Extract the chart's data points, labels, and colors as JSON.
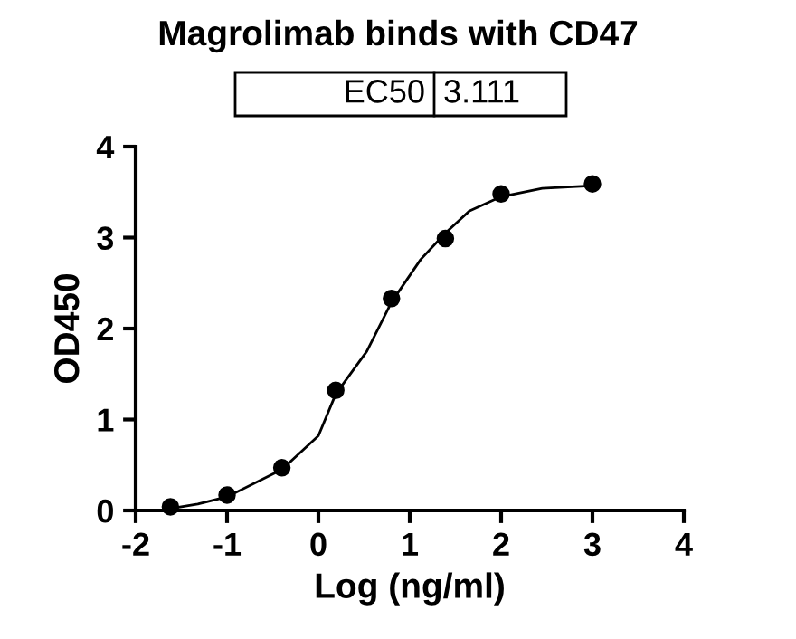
{
  "chart_data": {
    "type": "scatter",
    "title": "Magrolimab binds with CD47",
    "xlabel": "Log (ng/ml)",
    "ylabel": "OD450",
    "annotations": [
      "EC50",
      "3.111"
    ],
    "series": [
      {
        "color": "#000000",
        "marker": "circle",
        "x": [
          -1.62,
          -1.0,
          -0.4,
          0.19,
          0.8,
          1.39,
          2.0,
          3.0
        ],
        "values": [
          0.04,
          0.17,
          0.47,
          1.32,
          2.33,
          2.99,
          3.48,
          3.59
        ]
      },
      {
        "type": "line",
        "color": "#000000",
        "marker": "none",
        "line_style": "solid",
        "x": [
          -1.62,
          -1.32,
          -1.0,
          -0.4,
          0.0,
          0.19,
          0.53,
          0.8,
          1.12,
          1.39,
          1.65,
          2.0,
          2.45,
          3.0
        ],
        "values": [
          0.02,
          0.07,
          0.15,
          0.45,
          0.82,
          1.28,
          1.75,
          2.29,
          2.76,
          3.05,
          3.29,
          3.45,
          3.54,
          3.57
        ]
      }
    ],
    "xlim": [
      -2,
      4
    ],
    "xticks": [
      -2,
      -1,
      0,
      1,
      2,
      3,
      4
    ],
    "ylim": [
      0,
      4
    ],
    "yticks": [
      0,
      1,
      2,
      3,
      4
    ],
    "grid": false,
    "legend": false
  }
}
